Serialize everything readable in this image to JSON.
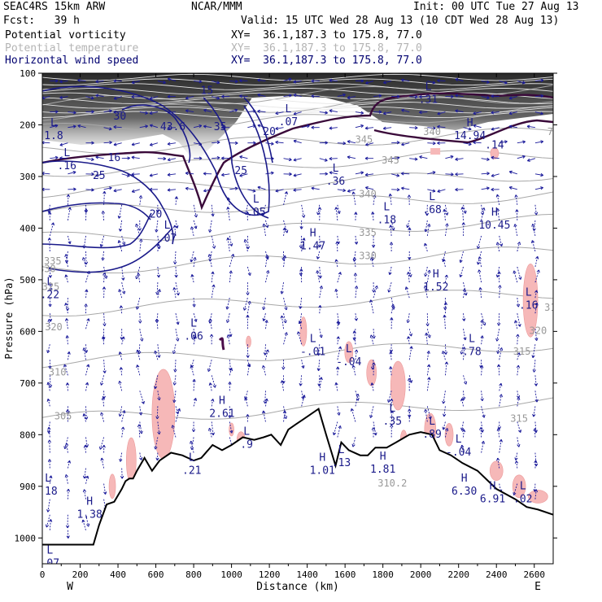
{
  "header": {
    "model": "SEAC4RS 15km ARW",
    "fcst": "Fcst:   39 h",
    "org": "NCAR/MMM",
    "init": "Init: 00 UTC Tue 27 Aug 13",
    "valid": "Valid: 15 UTC Wed 28 Aug 13 (10 CDT Wed 28 Aug 13)",
    "fields": [
      {
        "name": "Potential vorticity",
        "xy": "XY=  36.1,187.3 to 175.8, 77.0",
        "color": "#000000"
      },
      {
        "name": "Potential temperature",
        "xy": "XY=  36.1,187.3 to 175.8, 77.0",
        "color": "#b4b4b4"
      },
      {
        "name": "Horizontal wind speed",
        "xy": "XY=  36.1,187.3 to 175.8, 77.0",
        "color": "#000070"
      }
    ]
  },
  "chart_data": {
    "type": "cross-section",
    "xlabel": "Distance (km)",
    "ylabel": "Pressure (hPa)",
    "xlim": [
      0,
      2700
    ],
    "ylim": [
      1050,
      100
    ],
    "xticks": [
      "0",
      "200",
      "400",
      "600",
      "800",
      "1000",
      "1200",
      "1400",
      "1600",
      "1800",
      "2000",
      "2200",
      "2400",
      "2600"
    ],
    "yticks": [
      "100",
      "200",
      "300",
      "400",
      "500",
      "600",
      "700",
      "800",
      "900",
      "1000"
    ],
    "end_labels": {
      "left": "W",
      "right": "E"
    },
    "terrain_hPa": [
      [
        0,
        1013
      ],
      [
        270,
        1013
      ],
      [
        300,
        975
      ],
      [
        340,
        935
      ],
      [
        380,
        930
      ],
      [
        420,
        905
      ],
      [
        440,
        890
      ],
      [
        460,
        885
      ],
      [
        480,
        885
      ],
      [
        500,
        870
      ],
      [
        540,
        845
      ],
      [
        580,
        870
      ],
      [
        620,
        850
      ],
      [
        680,
        835
      ],
      [
        740,
        840
      ],
      [
        800,
        850
      ],
      [
        840,
        845
      ],
      [
        900,
        820
      ],
      [
        950,
        830
      ],
      [
        1000,
        820
      ],
      [
        1060,
        805
      ],
      [
        1120,
        810
      ],
      [
        1170,
        805
      ],
      [
        1210,
        800
      ],
      [
        1260,
        820
      ],
      [
        1300,
        790
      ],
      [
        1340,
        780
      ],
      [
        1380,
        770
      ],
      [
        1420,
        760
      ],
      [
        1460,
        750
      ],
      [
        1500,
        800
      ],
      [
        1550,
        860
      ],
      [
        1580,
        815
      ],
      [
        1620,
        830
      ],
      [
        1680,
        840
      ],
      [
        1720,
        840
      ],
      [
        1760,
        825
      ],
      [
        1820,
        825
      ],
      [
        1870,
        815
      ],
      [
        1940,
        800
      ],
      [
        2000,
        795
      ],
      [
        2060,
        800
      ],
      [
        2100,
        830
      ],
      [
        2160,
        840
      ],
      [
        2220,
        855
      ],
      [
        2300,
        870
      ],
      [
        2400,
        905
      ],
      [
        2500,
        925
      ],
      [
        2560,
        940
      ],
      [
        2620,
        945
      ],
      [
        2700,
        955
      ]
    ],
    "wind_speed_contours": [
      "15",
      "20",
      "25",
      "30",
      "35",
      "43.6"
    ],
    "theta_contour_labels": [
      "305",
      "310",
      "315",
      "320",
      "325",
      "330",
      "335",
      "340",
      "345",
      "310.2"
    ],
    "extrema": [
      {
        "t": "L",
        "v": ".07",
        "x": 1300,
        "p": 185
      },
      {
        "t": "L",
        "v": ".36",
        "x": 1550,
        "p": 300
      },
      {
        "t": "L",
        "v": ".31",
        "x": 2040,
        "p": 142
      },
      {
        "t": "H",
        "v": "14.94",
        "x": 2260,
        "p": 212
      },
      {
        "t": ".14",
        "v": "",
        "x": 2390,
        "p": 255
      },
      {
        "t": "L",
        "v": ".18",
        "x": 1820,
        "p": 375
      },
      {
        "t": "L",
        "v": ".68",
        "x": 2060,
        "p": 355
      },
      {
        "t": "H",
        "v": "10.45",
        "x": 2390,
        "p": 385
      },
      {
        "t": "L",
        "v": ".05",
        "x": 1130,
        "p": 360
      },
      {
        "t": "H",
        "v": "1.47",
        "x": 1430,
        "p": 425
      },
      {
        "t": "H",
        "v": "1.52",
        "x": 2080,
        "p": 505
      },
      {
        "t": "L",
        "v": ".16",
        "x": 2570,
        "p": 540
      },
      {
        "t": "L",
        "v": ".06",
        "x": 800,
        "p": 600
      },
      {
        "t": "L",
        "v": "-.01",
        "x": 1430,
        "p": 630
      },
      {
        "t": "L",
        "v": "-.04",
        "x": 1620,
        "p": 650
      },
      {
        "t": "L",
        "v": ".78",
        "x": 2270,
        "p": 630
      },
      {
        "t": "H",
        "v": "2.61",
        "x": 950,
        "p": 750
      },
      {
        "t": "L",
        "v": ".35",
        "x": 1850,
        "p": 765
      },
      {
        "t": "L",
        "v": ".89",
        "x": 2060,
        "p": 790
      },
      {
        "t": "L",
        "v": "-.04",
        "x": 2200,
        "p": 825
      },
      {
        "t": "L",
        "v": ".13",
        "x": 1580,
        "p": 845
      },
      {
        "t": "H",
        "v": "1.01",
        "x": 1480,
        "p": 860
      },
      {
        "t": "L",
        "v": ".21",
        "x": 790,
        "p": 860
      },
      {
        "t": "H",
        "v": "6.30",
        "x": 2230,
        "p": 900
      },
      {
        "t": "H",
        "v": "6.91",
        "x": 2380,
        "p": 915
      },
      {
        "t": "L",
        "v": ".02",
        "x": 2540,
        "p": 915
      },
      {
        "t": "H",
        "v": "1.38",
        "x": 250,
        "p": 945
      },
      {
        "t": "L",
        "v": ".07",
        "x": 40,
        "p": 1040
      },
      {
        "t": "L",
        "v": ".16",
        "x": 130,
        "p": 270
      },
      {
        "t": "L",
        "v": "1.8",
        "x": 60,
        "p": 212
      },
      {
        "t": "L",
        "v": ".22",
        "x": 40,
        "p": 520
      },
      {
        "t": "L",
        "v": ".07",
        "x": 660,
        "p": 410
      },
      {
        "t": "L",
        "v": ".18",
        "x": 30,
        "p": 900
      },
      {
        "t": "H",
        "v": "1.81",
        "x": 1800,
        "p": 858
      },
      {
        "t": "L",
        "v": ".9",
        "x": 1080,
        "p": 810
      }
    ],
    "legend": "top-left",
    "grid": false
  }
}
